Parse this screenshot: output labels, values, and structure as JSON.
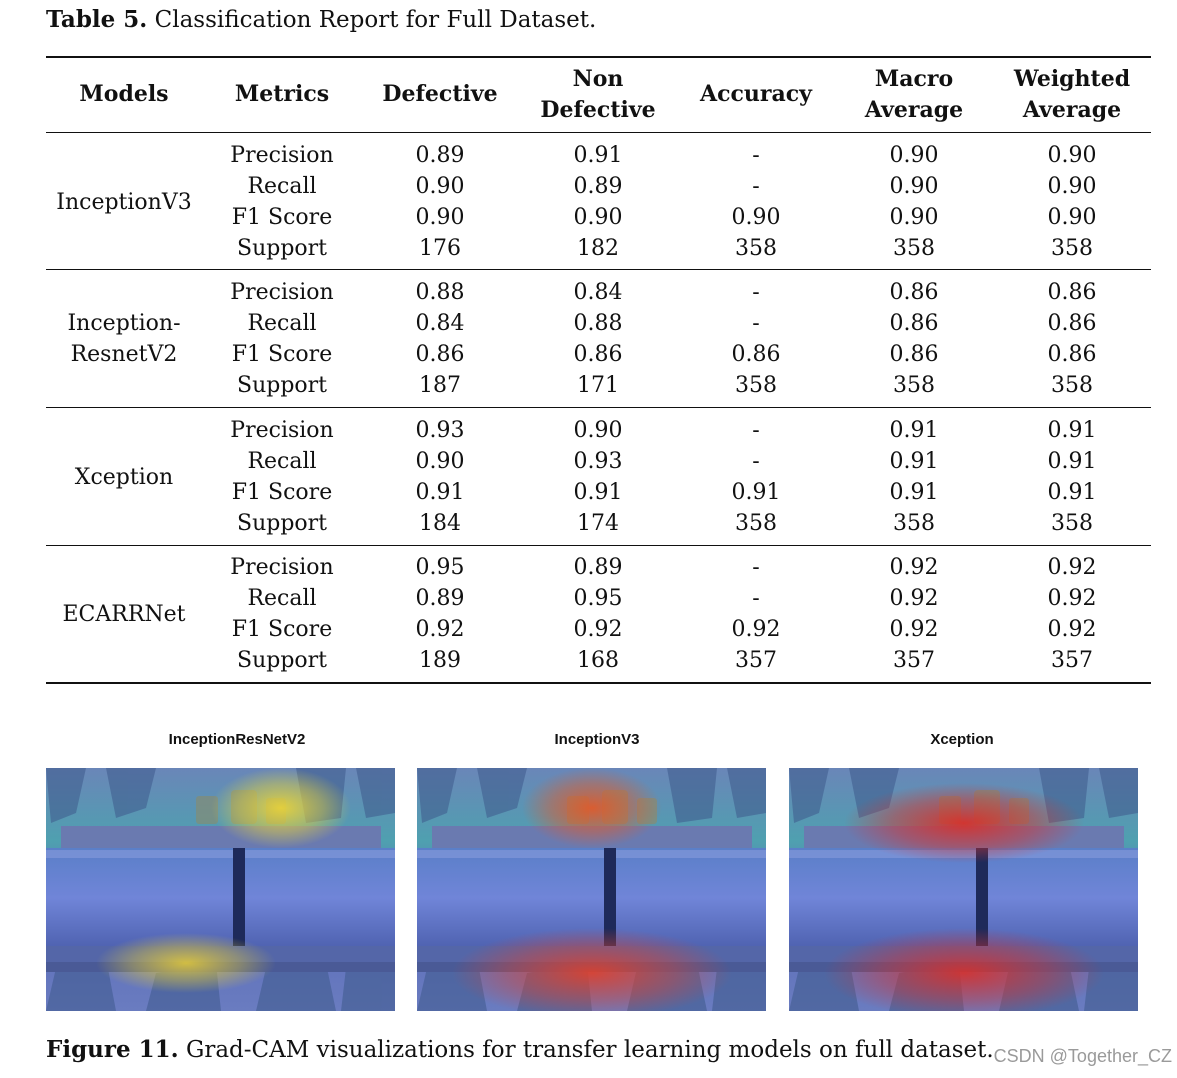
{
  "table": {
    "label": "Table 5.",
    "title": "Classification Report for Full Dataset.",
    "headers": [
      [
        "Models"
      ],
      [
        "Metrics"
      ],
      [
        "Defective"
      ],
      [
        "Non",
        "Defective"
      ],
      [
        "Accuracy"
      ],
      [
        "Macro",
        "Average"
      ],
      [
        "Weighted",
        "Average"
      ]
    ],
    "groups": [
      {
        "model": [
          "InceptionV3"
        ],
        "rows": [
          [
            "Precision",
            "0.89",
            "0.91",
            "-",
            "0.90",
            "0.90"
          ],
          [
            "Recall",
            "0.90",
            "0.89",
            "-",
            "0.90",
            "0.90"
          ],
          [
            "F1 Score",
            "0.90",
            "0.90",
            "0.90",
            "0.90",
            "0.90"
          ],
          [
            "Support",
            "176",
            "182",
            "358",
            "358",
            "358"
          ]
        ]
      },
      {
        "model": [
          "Inception-",
          "ResnetV2"
        ],
        "rows": [
          [
            "Precision",
            "0.88",
            "0.84",
            "-",
            "0.86",
            "0.86"
          ],
          [
            "Recall",
            "0.84",
            "0.88",
            "-",
            "0.86",
            "0.86"
          ],
          [
            "F1 Score",
            "0.86",
            "0.86",
            "0.86",
            "0.86",
            "0.86"
          ],
          [
            "Support",
            "187",
            "171",
            "358",
            "358",
            "358"
          ]
        ]
      },
      {
        "model": [
          "Xception"
        ],
        "rows": [
          [
            "Precision",
            "0.93",
            "0.90",
            "-",
            "0.91",
            "0.91"
          ],
          [
            "Recall",
            "0.90",
            "0.93",
            "-",
            "0.91",
            "0.91"
          ],
          [
            "F1 Score",
            "0.91",
            "0.91",
            "0.91",
            "0.91",
            "0.91"
          ],
          [
            "Support",
            "184",
            "174",
            "358",
            "358",
            "358"
          ]
        ]
      },
      {
        "model": [
          "ECARRNet"
        ],
        "rows": [
          [
            "Precision",
            "0.95",
            "0.89",
            "-",
            "0.92",
            "0.92"
          ],
          [
            "Recall",
            "0.89",
            "0.95",
            "-",
            "0.92",
            "0.92"
          ],
          [
            "F1 Score",
            "0.92",
            "0.92",
            "0.92",
            "0.92",
            "0.92"
          ],
          [
            "Support",
            "189",
            "168",
            "357",
            "357",
            "357"
          ]
        ]
      }
    ]
  },
  "figure": {
    "panels": [
      {
        "title": "InceptionResNetV2",
        "heat_top": "#e8d23a",
        "heat_bottom": "#e0c83a"
      },
      {
        "title": "InceptionV3",
        "heat_top": "#e05a2a",
        "heat_bottom": "#e0402a"
      },
      {
        "title": "Xception",
        "heat_top": "#d8302a",
        "heat_bottom": "#d8302a"
      }
    ],
    "label": "Figure 11.",
    "caption": "Grad-CAM visualizations for transfer learning models on full dataset."
  },
  "watermark": "CSDN @Together_CZ"
}
